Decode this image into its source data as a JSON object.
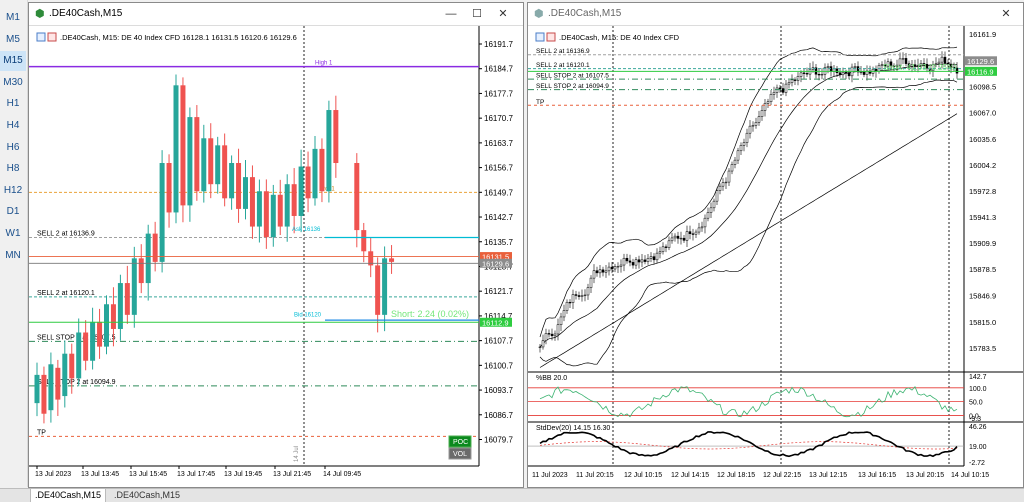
{
  "timeframes": [
    "M1",
    "M5",
    "M15",
    "M30",
    "H1",
    "H4",
    "H6",
    "H8",
    "H12",
    "D1",
    "W1",
    "MN"
  ],
  "active_timeframe": "M15",
  "tabs": [
    ".DE40Cash,M15",
    ".DE40Cash,M15"
  ],
  "left": {
    "title": ".DE40Cash,M15",
    "info": ".DE40Cash, M15:  DE 40 Index CFD   16128.1 16131.5 16120.6 16129.6",
    "price_labels": [
      "16191.7",
      "16184.7",
      "16177.7",
      "16170.7",
      "16163.7",
      "16156.7",
      "16149.7",
      "16142.7",
      "16135.7",
      "16128.7",
      "16121.7",
      "16114.7",
      "16107.7",
      "16100.7",
      "16093.7",
      "16086.7",
      "16079.7"
    ],
    "time_labels": [
      "13 Jul 2023",
      "13 Jul 13:45",
      "13 Jul 15:45",
      "13 Jul 17:45",
      "13 Jul 19:45",
      "13 Jul 21:45",
      "14 Jul 09:45"
    ],
    "levels": [
      {
        "label": "High 1"
      },
      {
        "label": "Poc1"
      },
      {
        "label": "SELL 2 at 16136.9"
      },
      {
        "label": "SELL 2 at 16120.1"
      },
      {
        "label": "SELL STOP 2 at 16107.5"
      },
      {
        "label": "SELL STOP 2 at 16094.9"
      },
      {
        "label": "TP"
      }
    ],
    "price_tags": {
      "bid": "16131.5",
      "ask": "16129.6",
      "short": "16112.9"
    },
    "short_text": "Short: 2.24  (0.02%)",
    "small_labels": [
      "Ask 16136",
      "Bid 16120"
    ],
    "buttons": {
      "poc": "POC",
      "vol": "VOL"
    },
    "separator_label": "14 Jul"
  },
  "right": {
    "title": ".DE40Cash,M15",
    "info": ".DE40Cash, M15:  DE 40 Index CFD",
    "price_labels": [
      "16161.9",
      "16129.6",
      "16098.5",
      "16067.0",
      "16035.6",
      "16004.2",
      "15972.8",
      "15941.3",
      "15909.9",
      "15878.5",
      "15846.9",
      "15815.0",
      "15783.5"
    ],
    "price_tags": {
      "a": "16129.6",
      "b": "16116.9"
    },
    "levels": [
      "SELL 2 at 16136.9",
      "SELL 2 at 16120.1",
      "SELL STOP 2 at 16107.5",
      "SELL STOP 2 at 16094.9",
      "TP"
    ],
    "short_text": "Short: 41.03  (0.25%)",
    "bb_title": "%BB 20.0",
    "bb_labels": [
      "142.7",
      "100.0",
      "50.0",
      "0.0",
      "-9.3"
    ],
    "sd_title": "StdDev(20) 14.15 16.30",
    "sd_labels": [
      "46.26",
      "19.00",
      "-2.72"
    ],
    "time_labels": [
      "11 Jul 2023",
      "11 Jul 20:15",
      "12 Jul 10:15",
      "12 Jul 14:15",
      "12 Jul 18:15",
      "12 Jul 22:15",
      "13 Jul 12:15",
      "13 Jul 16:15",
      "13 Jul 20:15",
      "14 Jul 10:15"
    ]
  },
  "colors": {
    "bull": "#26a69a",
    "bear": "#ef5350",
    "purple": "#8a2be2",
    "green": "#2ecc40",
    "cyan": "#00bcd4"
  }
}
